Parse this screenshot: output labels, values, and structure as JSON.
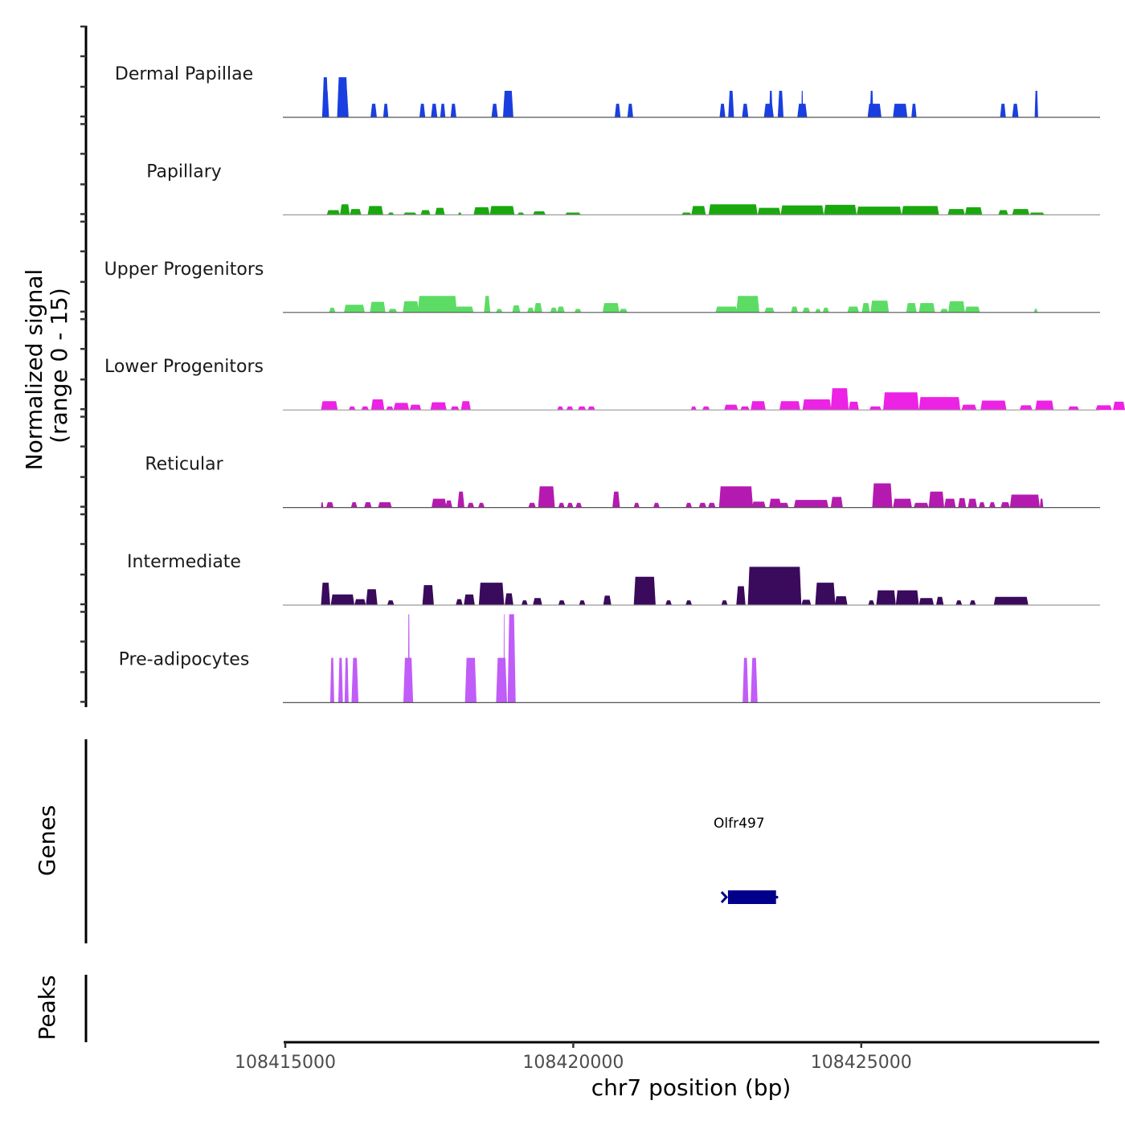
{
  "chart_data": {
    "type": "area",
    "title": "",
    "chromosome": "chr7",
    "xlabel": "chr7 position (bp)",
    "ylabel": "Normalized signal\n(range 0 - 15)",
    "ylabel_lines": [
      "Normalized signal",
      "(range 0 - 15)"
    ],
    "xlim": [
      108415000,
      108429130
    ],
    "ylim": [
      0,
      15
    ],
    "x_ticks": [
      108415000,
      108420000,
      108425000
    ],
    "x_tick_labels": [
      "108415000",
      "108420000",
      "108425000"
    ],
    "peak_units": "peaks given as [start_kb_from_108415000, end_kb_from_108415000, normalized_signal]",
    "tracks": [
      {
        "name": "Dermal Papillae",
        "color": "#1a3fe0",
        "peaks": [
          [
            0.64,
            0.75,
            6.8
          ],
          [
            0.66,
            0.76,
            4.5
          ],
          [
            0.9,
            1.09,
            6.8
          ],
          [
            0.92,
            1.1,
            4.5
          ],
          [
            1.48,
            1.59,
            2.3
          ],
          [
            1.7,
            1.79,
            2.3
          ],
          [
            2.33,
            2.43,
            2.3
          ],
          [
            2.53,
            2.64,
            2.3
          ],
          [
            2.69,
            2.78,
            2.3
          ],
          [
            2.87,
            2.97,
            2.3
          ],
          [
            3.58,
            3.69,
            2.3
          ],
          [
            3.78,
            3.96,
            4.5
          ],
          [
            5.72,
            5.82,
            2.3
          ],
          [
            5.94,
            6.04,
            2.3
          ],
          [
            7.54,
            7.64,
            2.3
          ],
          [
            7.69,
            7.79,
            4.5
          ],
          [
            7.93,
            8.04,
            2.3
          ],
          [
            8.31,
            8.48,
            2.3
          ],
          [
            8.4,
            8.46,
            4.5
          ],
          [
            8.55,
            8.65,
            4.5
          ],
          [
            8.89,
            9.06,
            2.3
          ],
          [
            8.96,
            8.99,
            4.5
          ],
          [
            10.11,
            10.35,
            2.3
          ],
          [
            10.15,
            10.21,
            4.5
          ],
          [
            10.55,
            10.8,
            2.3
          ],
          [
            10.87,
            10.96,
            2.3
          ],
          [
            12.41,
            12.51,
            2.3
          ],
          [
            12.62,
            12.73,
            2.3
          ],
          [
            13.01,
            13.07,
            4.5
          ]
        ]
      },
      {
        "name": "Papillary",
        "color": "#1aa80f",
        "peaks": [
          [
            0.72,
            0.95,
            0.8
          ],
          [
            0.95,
            1.12,
            1.8
          ],
          [
            1.12,
            1.32,
            1.0
          ],
          [
            1.43,
            1.7,
            1.5
          ],
          [
            1.78,
            1.89,
            0.4
          ],
          [
            2.05,
            2.28,
            0.4
          ],
          [
            2.35,
            2.52,
            0.8
          ],
          [
            2.6,
            2.77,
            1.2
          ],
          [
            3.0,
            3.06,
            0.4
          ],
          [
            3.27,
            3.55,
            1.3
          ],
          [
            3.55,
            3.98,
            1.5
          ],
          [
            4.03,
            4.15,
            0.4
          ],
          [
            4.3,
            4.52,
            0.6
          ],
          [
            4.86,
            5.13,
            0.4
          ],
          [
            6.88,
            7.05,
            0.4
          ],
          [
            7.05,
            7.3,
            1.5
          ],
          [
            7.35,
            8.2,
            1.8
          ],
          [
            8.2,
            8.6,
            1.2
          ],
          [
            8.6,
            9.35,
            1.6
          ],
          [
            9.35,
            9.92,
            1.7
          ],
          [
            9.92,
            10.7,
            1.4
          ],
          [
            10.7,
            11.35,
            1.5
          ],
          [
            11.5,
            11.8,
            1.0
          ],
          [
            11.8,
            12.1,
            1.3
          ],
          [
            12.38,
            12.55,
            0.8
          ],
          [
            12.62,
            12.92,
            1.0
          ],
          [
            12.92,
            13.18,
            0.4
          ],
          [
            13.0,
            13.06,
            0.4
          ]
        ]
      },
      {
        "name": "Upper Progenitors",
        "color": "#5cdc64",
        "peaks": [
          [
            0.76,
            0.87,
            0.8
          ],
          [
            1.02,
            1.38,
            1.3
          ],
          [
            1.47,
            1.74,
            1.8
          ],
          [
            1.79,
            1.94,
            0.6
          ],
          [
            2.04,
            2.32,
            1.9
          ],
          [
            2.3,
            2.98,
            2.8
          ],
          [
            2.95,
            3.27,
            1.0
          ],
          [
            3.45,
            3.56,
            2.8
          ],
          [
            3.66,
            3.77,
            0.6
          ],
          [
            3.94,
            4.08,
            1.2
          ],
          [
            4.2,
            4.32,
            0.8
          ],
          [
            4.32,
            4.46,
            1.6
          ],
          [
            4.6,
            4.72,
            0.8
          ],
          [
            4.72,
            4.85,
            1.0
          ],
          [
            5.02,
            5.14,
            0.6
          ],
          [
            5.51,
            5.8,
            1.6
          ],
          [
            5.8,
            5.94,
            0.6
          ],
          [
            7.47,
            7.85,
            1.0
          ],
          [
            7.83,
            8.23,
            2.8
          ],
          [
            8.32,
            8.49,
            0.8
          ],
          [
            8.78,
            8.9,
            1.0
          ],
          [
            8.98,
            9.11,
            0.8
          ],
          [
            9.2,
            9.3,
            0.6
          ],
          [
            9.33,
            9.44,
            0.8
          ],
          [
            9.76,
            9.96,
            1.0
          ],
          [
            10.01,
            10.15,
            1.6
          ],
          [
            10.16,
            10.48,
            2.0
          ],
          [
            10.78,
            10.96,
            1.6
          ],
          [
            11.0,
            11.28,
            1.6
          ],
          [
            11.37,
            11.51,
            0.6
          ],
          [
            11.51,
            11.8,
            1.9
          ],
          [
            11.8,
            12.06,
            1.0
          ],
          [
            13.0,
            13.06,
            0.6
          ]
        ]
      },
      {
        "name": "Lower Progenitors",
        "color": "#ec22e4",
        "peaks": [
          [
            0.62,
            0.91,
            1.5
          ],
          [
            1.1,
            1.22,
            0.6
          ],
          [
            1.32,
            1.45,
            0.6
          ],
          [
            1.49,
            1.72,
            1.8
          ],
          [
            1.75,
            1.88,
            0.6
          ],
          [
            1.88,
            2.15,
            1.2
          ],
          [
            2.16,
            2.36,
            0.9
          ],
          [
            2.52,
            2.8,
            1.3
          ],
          [
            2.87,
            3.02,
            0.6
          ],
          [
            3.05,
            3.22,
            1.5
          ],
          [
            4.72,
            4.83,
            0.6
          ],
          [
            4.88,
            5.0,
            0.6
          ],
          [
            5.08,
            5.22,
            0.6
          ],
          [
            5.25,
            5.38,
            0.6
          ],
          [
            7.04,
            7.14,
            0.6
          ],
          [
            7.24,
            7.37,
            0.6
          ],
          [
            7.62,
            7.86,
            0.9
          ],
          [
            7.9,
            8.06,
            0.6
          ],
          [
            8.08,
            8.34,
            1.5
          ],
          [
            8.58,
            8.94,
            1.5
          ],
          [
            8.98,
            9.48,
            1.8
          ],
          [
            9.47,
            9.78,
            3.7
          ],
          [
            9.78,
            9.96,
            1.4
          ],
          [
            10.14,
            10.35,
            0.6
          ],
          [
            10.38,
            11.0,
            3.0
          ],
          [
            11.0,
            11.72,
            2.2
          ],
          [
            11.74,
            12.0,
            0.9
          ],
          [
            12.07,
            12.52,
            1.6
          ],
          [
            12.75,
            12.97,
            0.8
          ],
          [
            13.02,
            13.34,
            1.6
          ],
          [
            13.59,
            13.78,
            0.6
          ],
          [
            14.07,
            14.35,
            0.8
          ],
          [
            14.37,
            14.58,
            1.4
          ]
        ]
      },
      {
        "name": "Reticular",
        "color": "#b51ab0",
        "peaks": [
          [
            0.62,
            0.66,
            0.9
          ],
          [
            0.71,
            0.84,
            0.9
          ],
          [
            1.14,
            1.25,
            0.9
          ],
          [
            1.37,
            1.5,
            0.9
          ],
          [
            1.61,
            1.85,
            0.9
          ],
          [
            2.54,
            2.8,
            1.5
          ],
          [
            2.78,
            2.9,
            1.2
          ],
          [
            2.99,
            3.11,
            2.7
          ],
          [
            3.16,
            3.28,
            0.8
          ],
          [
            3.35,
            3.46,
            0.8
          ],
          [
            4.22,
            4.35,
            0.8
          ],
          [
            4.39,
            4.68,
            3.6
          ],
          [
            4.74,
            4.85,
            0.8
          ],
          [
            4.89,
            5.0,
            0.8
          ],
          [
            5.04,
            5.15,
            0.8
          ],
          [
            5.68,
            5.81,
            2.7
          ],
          [
            6.05,
            6.15,
            0.8
          ],
          [
            6.39,
            6.5,
            0.8
          ],
          [
            6.95,
            7.06,
            0.8
          ],
          [
            7.18,
            7.31,
            0.8
          ],
          [
            7.34,
            7.47,
            0.8
          ],
          [
            7.53,
            8.12,
            3.6
          ],
          [
            8.1,
            8.34,
            1.0
          ],
          [
            8.4,
            8.61,
            1.5
          ],
          [
            8.55,
            8.74,
            0.8
          ],
          [
            8.83,
            9.43,
            1.3
          ],
          [
            9.47,
            9.68,
            1.8
          ],
          [
            10.19,
            10.54,
            4.1
          ],
          [
            10.55,
            10.88,
            1.5
          ],
          [
            10.91,
            11.17,
            0.8
          ],
          [
            11.17,
            11.44,
            2.7
          ],
          [
            11.44,
            11.64,
            1.5
          ],
          [
            11.68,
            11.82,
            1.6
          ],
          [
            11.85,
            12.01,
            1.5
          ],
          [
            12.04,
            12.15,
            0.9
          ],
          [
            12.22,
            12.33,
            0.9
          ],
          [
            12.42,
            12.58,
            0.9
          ],
          [
            12.58,
            13.1,
            2.2
          ],
          [
            13.1,
            13.16,
            1.5
          ]
        ]
      },
      {
        "name": "Intermediate",
        "color": "#3a0a5c",
        "peaks": [
          [
            0.62,
            0.78,
            3.8
          ],
          [
            0.79,
            1.2,
            1.8
          ],
          [
            1.2,
            1.4,
            1.0
          ],
          [
            1.4,
            1.6,
            2.7
          ],
          [
            1.77,
            1.89,
            0.8
          ],
          [
            2.38,
            2.58,
            3.4
          ],
          [
            2.96,
            3.08,
            1.0
          ],
          [
            3.1,
            3.29,
            1.8
          ],
          [
            3.36,
            3.8,
            3.8
          ],
          [
            3.81,
            3.96,
            2.0
          ],
          [
            4.1,
            4.21,
            0.8
          ],
          [
            4.3,
            4.46,
            1.2
          ],
          [
            4.74,
            4.86,
            0.8
          ],
          [
            5.1,
            5.21,
            0.8
          ],
          [
            5.52,
            5.66,
            1.6
          ],
          [
            6.05,
            6.43,
            4.8
          ],
          [
            6.6,
            6.71,
            0.8
          ],
          [
            6.95,
            7.06,
            0.8
          ],
          [
            7.57,
            7.68,
            0.8
          ],
          [
            7.83,
            7.99,
            3.2
          ],
          [
            8.03,
            8.96,
            6.5
          ],
          [
            8.96,
            9.13,
            0.9
          ],
          [
            9.2,
            9.55,
            3.8
          ],
          [
            9.54,
            9.76,
            1.5
          ],
          [
            10.12,
            10.23,
            0.8
          ],
          [
            10.26,
            10.6,
            2.5
          ],
          [
            10.6,
            11.0,
            2.5
          ],
          [
            11.0,
            11.26,
            1.2
          ],
          [
            11.3,
            11.43,
            1.4
          ],
          [
            11.64,
            11.75,
            0.8
          ],
          [
            11.88,
            11.99,
            0.8
          ],
          [
            12.3,
            12.78,
            1.4
          ],
          [
            12.72,
            12.9,
            1.4
          ]
        ]
      },
      {
        "name": "Pre-adipocytes",
        "color": "#c05cf8",
        "peaks": [
          [
            0.78,
            0.85,
            7.6
          ],
          [
            0.92,
            1.0,
            7.6
          ],
          [
            1.03,
            1.1,
            7.6
          ],
          [
            1.15,
            1.27,
            7.6
          ],
          [
            2.05,
            2.22,
            7.6
          ],
          [
            2.13,
            2.16,
            15.0
          ],
          [
            3.12,
            3.32,
            7.6
          ],
          [
            3.66,
            3.85,
            7.6
          ],
          [
            3.79,
            3.81,
            15.0
          ],
          [
            3.86,
            4.0,
            15.0
          ],
          [
            7.94,
            8.04,
            7.6
          ],
          [
            8.08,
            8.2,
            7.6
          ]
        ]
      }
    ],
    "genes": [
      {
        "name": "Olfr497",
        "start": 108422630,
        "end": 108423520,
        "strand": "-",
        "color": "#00008b"
      }
    ],
    "panels": {
      "signal_label": "Normalized signal (range 0 - 15)",
      "genes_label": "Genes",
      "peaks_label": "Peaks"
    },
    "grid": false,
    "legend": "none"
  }
}
